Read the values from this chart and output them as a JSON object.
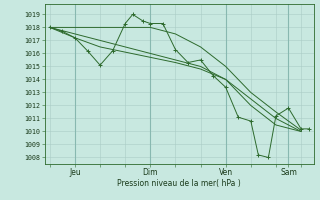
{
  "background_color": "#c8e8e0",
  "line_color": "#2d6a2d",
  "ylabel_ticks": [
    1008,
    1009,
    1010,
    1011,
    1012,
    1013,
    1014,
    1015,
    1016,
    1017,
    1018,
    1019
  ],
  "ylim": [
    1007.5,
    1019.8
  ],
  "xlim": [
    -0.2,
    10.5
  ],
  "xlabel": "Pression niveau de la mer( hPa )",
  "xtick_labels": [
    "Jeu",
    "Dim",
    "Ven",
    "Sam"
  ],
  "xtick_positions": [
    1.0,
    4.0,
    7.0,
    9.5
  ],
  "lineA_x": [
    0.0,
    1.0,
    2.0,
    3.0,
    4.0,
    5.0,
    6.0,
    7.0,
    8.0,
    9.0,
    10.0
  ],
  "lineA_y": [
    1018.0,
    1018.0,
    1018.0,
    1018.0,
    1018.0,
    1017.5,
    1016.5,
    1015.0,
    1013.0,
    1011.5,
    1010.1
  ],
  "lineB_x": [
    0.0,
    1.0,
    2.0,
    3.0,
    4.0,
    5.0,
    6.0,
    7.0,
    8.0,
    9.0,
    10.0
  ],
  "lineB_y": [
    1018.0,
    1017.5,
    1017.0,
    1016.5,
    1016.0,
    1015.5,
    1015.0,
    1014.0,
    1012.5,
    1011.0,
    1010.0
  ],
  "lineC_x": [
    0.0,
    1.0,
    2.0,
    3.0,
    4.0,
    5.0,
    6.0,
    7.0,
    8.0,
    9.0,
    10.0
  ],
  "lineC_y": [
    1018.0,
    1017.2,
    1016.5,
    1016.1,
    1015.7,
    1015.3,
    1014.8,
    1014.0,
    1012.0,
    1010.5,
    1010.0
  ],
  "lineD_x": [
    0.0,
    0.5,
    1.0,
    1.5,
    2.0,
    2.5,
    3.0,
    3.3,
    3.7,
    4.0,
    4.5,
    5.0,
    5.5,
    6.0,
    6.5,
    7.0,
    7.5,
    8.0,
    8.3,
    8.7,
    9.0,
    9.5,
    10.0,
    10.3
  ],
  "lineD_y": [
    1018.0,
    1017.7,
    1017.2,
    1016.2,
    1015.1,
    1016.2,
    1018.3,
    1019.0,
    1018.5,
    1018.3,
    1018.3,
    1016.3,
    1015.3,
    1015.5,
    1014.3,
    1013.4,
    1011.1,
    1010.8,
    1008.2,
    1008.0,
    1011.2,
    1011.8,
    1010.2,
    1010.2
  ],
  "grid_minor_color": "#aaccc6",
  "grid_major_color": "#88b8b0"
}
